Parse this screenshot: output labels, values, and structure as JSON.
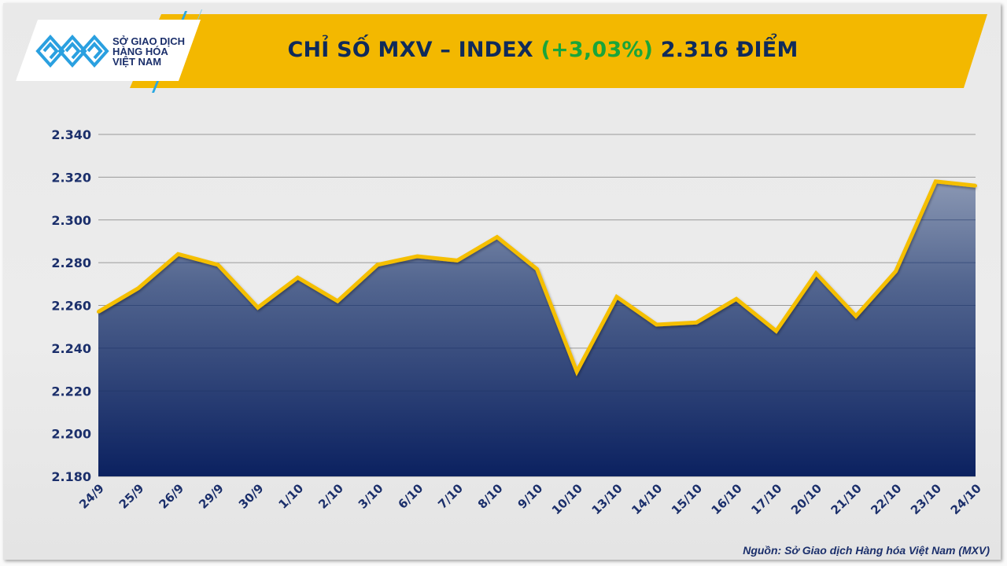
{
  "header": {
    "logo_lines": [
      "SỞ GIAO DỊCH",
      "HÀNG HÓA",
      "VIỆT NAM"
    ],
    "title_prefix": "CHỈ SỐ MXV – INDEX ",
    "title_change": "(+3,03%)",
    "title_suffix": " 2.316 ĐIỂM"
  },
  "colors": {
    "banner": "#f3b800",
    "line": "#f5bf00",
    "area_top": "#8a97b3",
    "area_bottom": "#0b2160",
    "change_positive": "#1aa53a",
    "text": "#1b2f6b"
  },
  "chart_data": {
    "type": "area",
    "title": "CHỈ SỐ MXV – INDEX (+3,03%) 2.316 ĐIỂM",
    "categories": [
      "24/9",
      "25/9",
      "26/9",
      "29/9",
      "30/9",
      "1/10",
      "2/10",
      "3/10",
      "6/10",
      "7/10",
      "8/10",
      "9/10",
      "10/10",
      "13/10",
      "14/10",
      "15/10",
      "16/10",
      "17/10",
      "20/10",
      "21/10",
      "22/10",
      "23/10",
      "24/10"
    ],
    "values": [
      2257,
      2268,
      2284,
      2279,
      2259,
      2273,
      2262,
      2279,
      2283,
      2281,
      2292,
      2277,
      2229,
      2264,
      2251,
      2252,
      2263,
      2248,
      2275,
      2255,
      2276,
      2318,
      2316
    ],
    "ylim": [
      2180,
      2340
    ],
    "yticks": [
      "2.180",
      "2.200",
      "2.220",
      "2.240",
      "2.260",
      "2.280",
      "2.300",
      "2.320",
      "2.340"
    ],
    "grid": true,
    "legend": "none"
  },
  "footer": {
    "source": "Nguồn: Sở Giao dịch Hàng hóa Việt Nam (MXV)"
  }
}
